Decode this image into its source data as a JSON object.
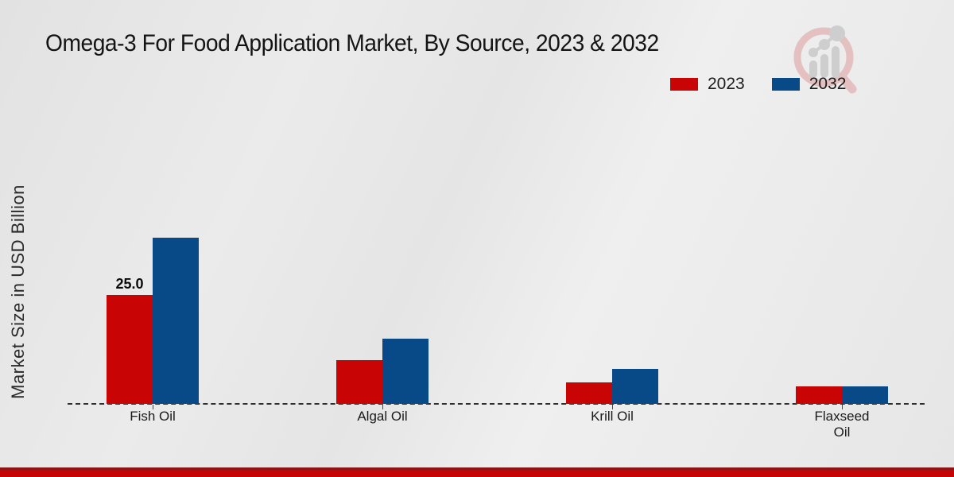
{
  "title": "Omega-3 For Food Application Market, By Source, 2023 & 2032",
  "ylabel": "Market Size in USD Billion",
  "legend": [
    {
      "label": "2023",
      "color": "#c80404"
    },
    {
      "label": "2032",
      "color": "#074a87"
    }
  ],
  "colors": {
    "series_2023": "#c80404",
    "series_2032": "#074a87",
    "footer_red": "#c50505",
    "footer_red_dark": "#8c1414",
    "background": "#e8e8e8",
    "baseline_dash": "#2e2e2e"
  },
  "watermark_icon": "magnifier-bar-chart-logo",
  "chart_data": {
    "type": "bar",
    "categories": [
      "Fish Oil",
      "Algal Oil",
      "Krill Oil",
      "Flaxseed Oil"
    ],
    "series": [
      {
        "name": "2023",
        "color": "#c80404",
        "values": [
          25.0,
          10.0,
          5.0,
          4.0
        ]
      },
      {
        "name": "2032",
        "color": "#074a87",
        "values": [
          38.0,
          15.0,
          8.0,
          4.0
        ]
      }
    ],
    "bar_labels": [
      [
        "25.0",
        null,
        null,
        null
      ],
      [
        null,
        null,
        null,
        null
      ]
    ],
    "title": "Omega-3 For Food Application Market, By Source, 2023 & 2032",
    "xlabel": "",
    "ylabel": "Market Size in USD Billion",
    "ylim": [
      0,
      40
    ],
    "grid": false,
    "y_axis_ticks_visible": false,
    "legend_position": "top-right",
    "baseline_style": "dashed"
  }
}
